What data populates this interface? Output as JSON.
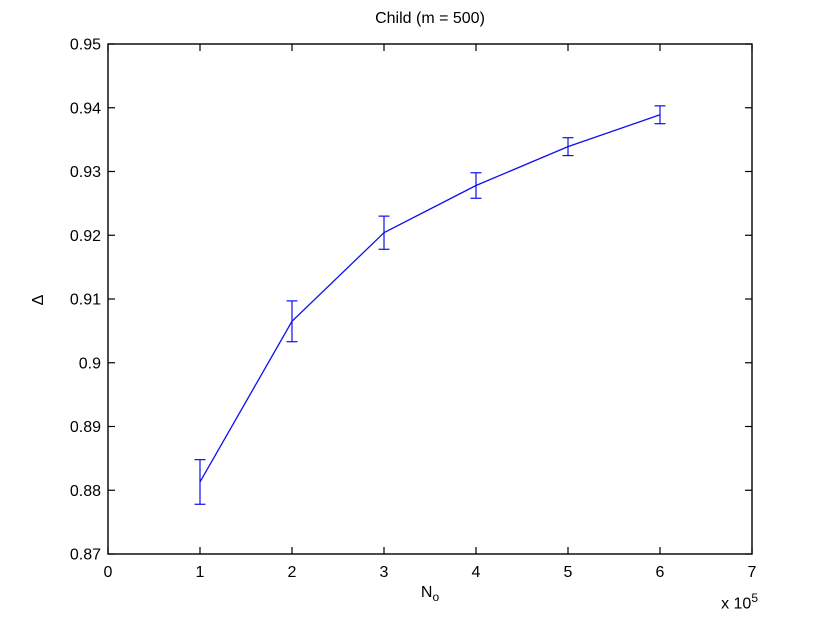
{
  "chart_data": {
    "type": "line",
    "title": "Child (m = 500)",
    "ylabel": "Δ",
    "xlabel_base": "N",
    "xlabel_sub": "o",
    "x_multiplier_base": "x 10",
    "x_multiplier_exp": "5",
    "x_axis_unit": "×10^5",
    "x": [
      1,
      2,
      3,
      4,
      5,
      6
    ],
    "y": [
      0.8813,
      0.9065,
      0.9204,
      0.9278,
      0.9339,
      0.9389
    ],
    "yerr": [
      0.0035,
      0.0032,
      0.0026,
      0.002,
      0.0014,
      0.0014
    ],
    "xlim": [
      0,
      7
    ],
    "ylim": [
      0.87,
      0.95
    ],
    "xticks": [
      "0",
      "1",
      "2",
      "3",
      "4",
      "5",
      "6",
      "7"
    ],
    "yticks": [
      "0.87",
      "0.88",
      "0.89",
      "0.9",
      "0.91",
      "0.92",
      "0.93",
      "0.94",
      "0.95"
    ],
    "line_color": "#0f0fee",
    "axis_color": "#000000",
    "grid": false,
    "legend": null
  }
}
